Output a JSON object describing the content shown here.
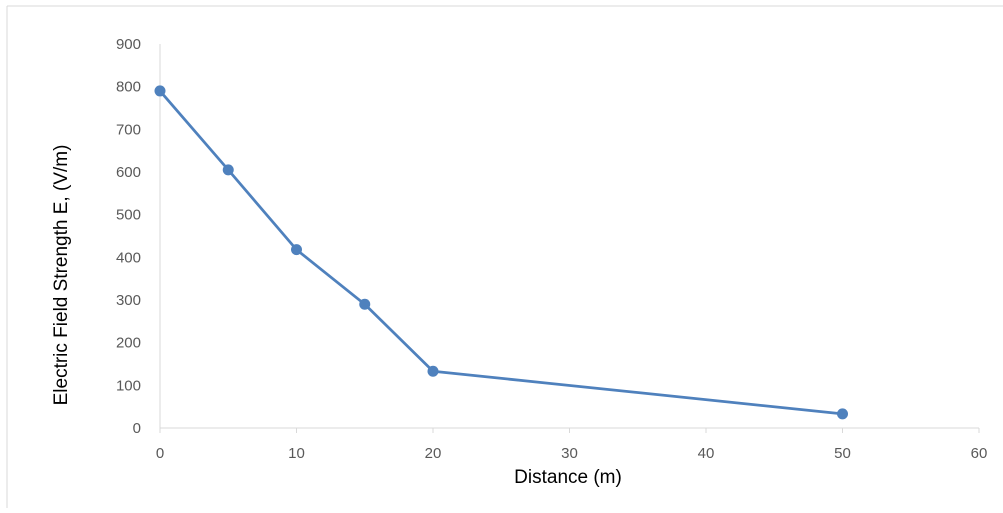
{
  "chart_data": {
    "type": "line",
    "title": "",
    "xlabel": "Distance (m)",
    "ylabel": "Electric Field Strength E, (V/m)",
    "xlim": [
      0,
      60
    ],
    "ylim": [
      0,
      900
    ],
    "xticks": [
      0,
      10,
      20,
      30,
      40,
      50,
      60
    ],
    "yticks": [
      0,
      100,
      200,
      300,
      400,
      500,
      600,
      700,
      800,
      900
    ],
    "grid": false,
    "legend": "none",
    "series": [
      {
        "color": "#4f81bd",
        "marker": "circle",
        "points": [
          {
            "x": 0,
            "y": 790
          },
          {
            "x": 5,
            "y": 605
          },
          {
            "x": 10,
            "y": 418
          },
          {
            "x": 15,
            "y": 290
          },
          {
            "x": 20,
            "y": 133
          },
          {
            "x": 50,
            "y": 33
          }
        ]
      }
    ]
  },
  "colors": {
    "series": "#4f81bd",
    "axis": "#d9d9d9",
    "border": "#d9d9d9",
    "text": "#595959"
  }
}
